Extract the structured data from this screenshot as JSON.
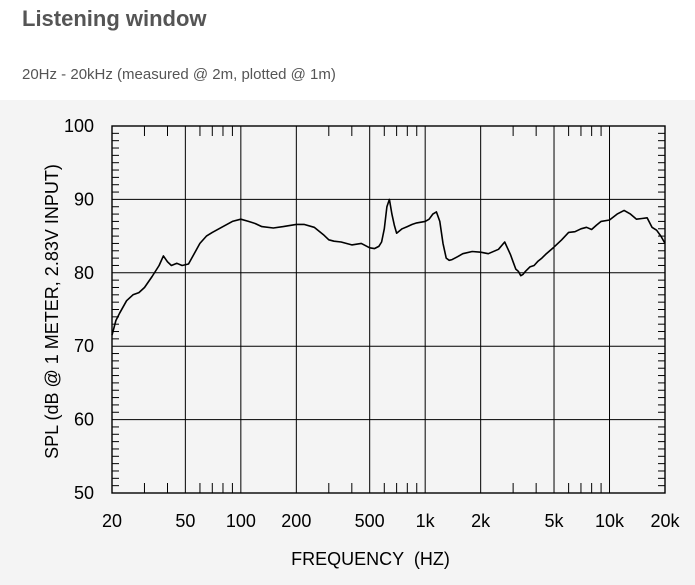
{
  "page": {
    "title": "Listening window",
    "subtitle": "20Hz - 20kHz (measured @ 2m, plotted @ 1m)"
  },
  "chart_data": {
    "type": "line",
    "xlabel": "FREQUENCY  (HZ)",
    "ylabel": "SPL (dB @ 1 METER, 2.83V INPUT)",
    "xscale": "log",
    "xlim": [
      20,
      20000
    ],
    "ylim": [
      50,
      100
    ],
    "grid": true,
    "x_ticks": [
      {
        "value": 20,
        "label": "20"
      },
      {
        "value": 50,
        "label": "50"
      },
      {
        "value": 100,
        "label": "100"
      },
      {
        "value": 200,
        "label": "200"
      },
      {
        "value": 500,
        "label": "500"
      },
      {
        "value": 1000,
        "label": "1k"
      },
      {
        "value": 2000,
        "label": "2k"
      },
      {
        "value": 5000,
        "label": "5k"
      },
      {
        "value": 10000,
        "label": "10k"
      },
      {
        "value": 20000,
        "label": "20k"
      }
    ],
    "y_ticks": [
      {
        "value": 100,
        "label": "100"
      },
      {
        "value": 90,
        "label": "90"
      },
      {
        "value": 80,
        "label": "80"
      },
      {
        "value": 70,
        "label": "70"
      },
      {
        "value": 60,
        "label": "60"
      },
      {
        "value": 50,
        "label": "50"
      }
    ],
    "series": [
      {
        "color": "#000000",
        "x": [
          20,
          21,
          22,
          24,
          26,
          28,
          30,
          33,
          36,
          38,
          40,
          42,
          45,
          48,
          52,
          55,
          60,
          65,
          70,
          80,
          90,
          100,
          110,
          120,
          130,
          150,
          170,
          200,
          220,
          250,
          280,
          300,
          320,
          350,
          400,
          450,
          500,
          530,
          560,
          580,
          600,
          620,
          640,
          660,
          680,
          700,
          750,
          800,
          850,
          900,
          1000,
          1050,
          1100,
          1150,
          1200,
          1250,
          1300,
          1350,
          1400,
          1500,
          1600,
          1800,
          2000,
          2200,
          2500,
          2700,
          2900,
          3000,
          3100,
          3200,
          3300,
          3400,
          3500,
          3700,
          3900,
          4100,
          4300,
          4500,
          5000,
          5500,
          6000,
          6500,
          7000,
          7500,
          8000,
          8500,
          9000,
          10000,
          11000,
          12000,
          13000,
          14000,
          15000,
          16000,
          17000,
          18000,
          19000,
          20000
        ],
        "y": [
          71.5,
          73.5,
          74.5,
          76.2,
          77.0,
          77.3,
          78.0,
          79.5,
          81.0,
          82.3,
          81.5,
          81.0,
          81.3,
          81.0,
          81.2,
          82.3,
          84.0,
          85.0,
          85.5,
          86.3,
          87.0,
          87.3,
          87.0,
          86.7,
          86.3,
          86.1,
          86.3,
          86.6,
          86.6,
          86.2,
          85.2,
          84.5,
          84.3,
          84.2,
          83.8,
          84.0,
          83.4,
          83.3,
          83.6,
          84.2,
          86.0,
          89.0,
          90.0,
          88.0,
          86.5,
          85.4,
          86.0,
          86.3,
          86.6,
          86.8,
          87.0,
          87.3,
          88.0,
          88.3,
          87.0,
          84.0,
          82.0,
          81.7,
          81.8,
          82.2,
          82.6,
          82.9,
          82.8,
          82.6,
          83.2,
          84.2,
          82.5,
          81.5,
          80.5,
          80.2,
          79.6,
          79.8,
          80.2,
          80.8,
          81.0,
          81.6,
          82.0,
          82.5,
          83.5,
          84.5,
          85.5,
          85.6,
          86.0,
          86.2,
          85.9,
          86.5,
          87.0,
          87.2,
          88.0,
          88.5,
          88.0,
          87.3,
          87.4,
          87.5,
          86.2,
          85.8,
          85.0,
          84.0
        ]
      }
    ]
  }
}
